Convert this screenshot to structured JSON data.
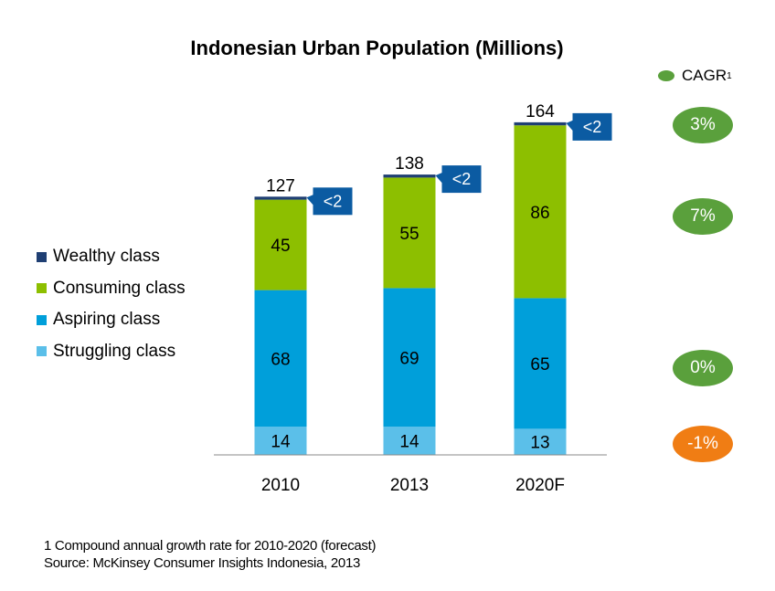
{
  "chart_data": {
    "type": "bar",
    "stacked": true,
    "title": "Indonesian Urban Population (Millions)",
    "categories": [
      "2010",
      "2013",
      "2020F"
    ],
    "totals": [
      "127",
      "138",
      "164"
    ],
    "series": [
      {
        "name": "Struggling class",
        "values": [
          14,
          14,
          13
        ],
        "color": "#5bbfe9"
      },
      {
        "name": "Aspiring class",
        "values": [
          68,
          69,
          65
        ],
        "color": "#009fda"
      },
      {
        "name": "Consuming class",
        "values": [
          45,
          55,
          86
        ],
        "color": "#8dbf00"
      },
      {
        "name": "Wealthy class",
        "values": [
          1.5,
          1.5,
          1.5
        ],
        "value_labels": [
          "<2",
          "<2",
          "<2"
        ],
        "color": "#1f3f73"
      }
    ],
    "callout_color": "#0b5ba2",
    "legend_order": [
      "Wealthy class",
      "Consuming class",
      "Aspiring class",
      "Struggling class"
    ],
    "legend_position": "left"
  },
  "cagr": {
    "label": "CAGR",
    "label_sup": "1",
    "legend_color": "#5aa03c",
    "items": [
      {
        "series": "Wealthy class",
        "value": "3%",
        "color": "#5aa03c"
      },
      {
        "series": "Consuming class",
        "value": "7%",
        "color": "#5aa03c"
      },
      {
        "series": "Aspiring class",
        "value": "0%",
        "color": "#5aa03c"
      },
      {
        "series": "Struggling class",
        "value": "-1%",
        "color": "#f07d14"
      }
    ]
  },
  "footnote": {
    "line1": "1 Compound annual growth rate for  2010-2020 (forecast)",
    "line2": "Source: McKinsey Consumer Insights Indonesia, 2013"
  }
}
